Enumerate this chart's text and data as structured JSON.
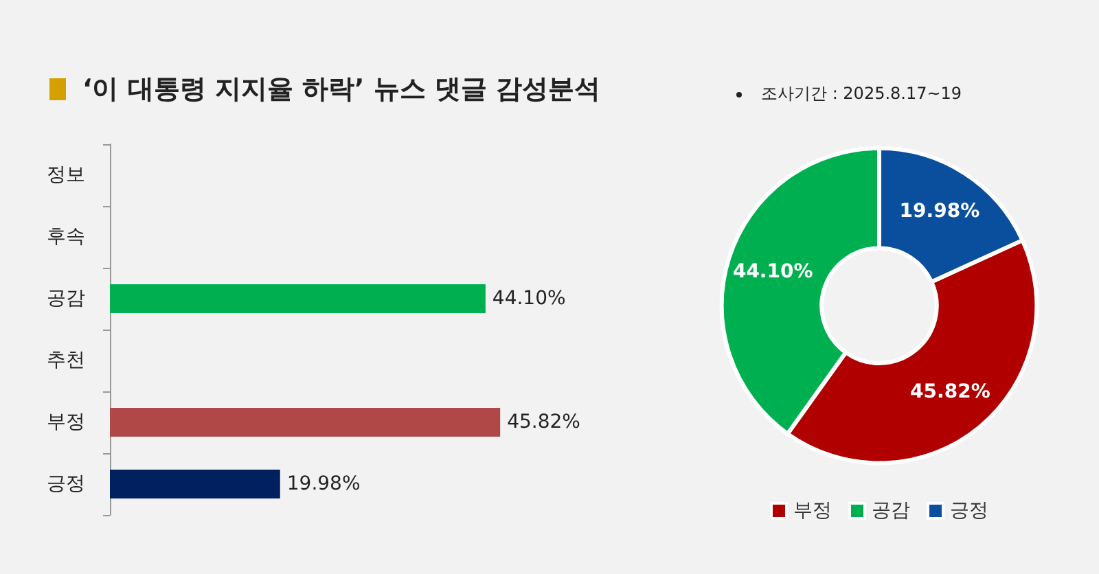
{
  "chart_data": [
    {
      "type": "bar",
      "title": "‘이 대통령 지지율 하락’ 뉴스 댓글 감성분석",
      "orientation": "horizontal",
      "categories": [
        "정보",
        "후속",
        "공감",
        "추천",
        "부정",
        "긍정"
      ],
      "values": [
        null,
        null,
        44.1,
        null,
        45.82,
        19.98
      ],
      "colors": [
        "#808080",
        "#808080",
        "#00b050",
        "#808080",
        "#b04848",
        "#002060"
      ],
      "value_labels": [
        null,
        null,
        "44.10%",
        null,
        "45.82%",
        "19.98%"
      ],
      "tick_labels": "y"
    },
    {
      "type": "donut",
      "subtitle": "조사기간 : 2025.8.17~19",
      "categories": [
        "부정",
        "공감",
        "긍정"
      ],
      "values": [
        45.82,
        44.1,
        19.98
      ],
      "colors": [
        "#b00000",
        "#00b050",
        "#0a4f9e"
      ],
      "value_labels": [
        "45.82%",
        "44.10%",
        "19.98%"
      ],
      "legend": "bottom"
    }
  ]
}
